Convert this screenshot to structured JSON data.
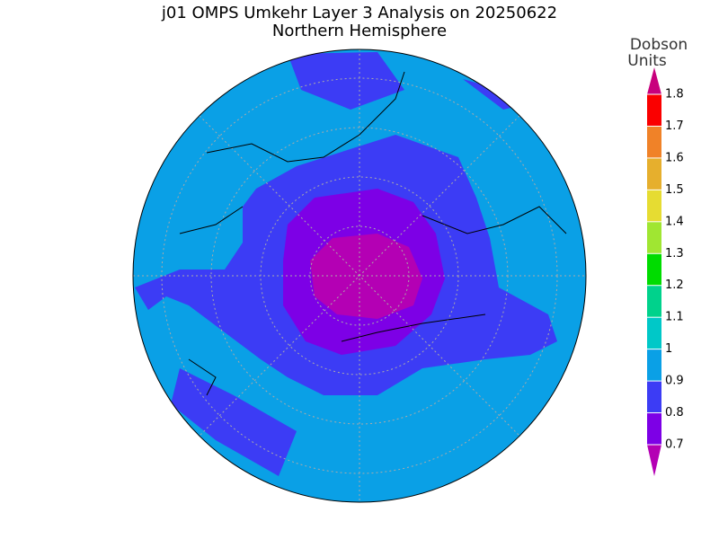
{
  "header": {
    "title": "j01 OMPS Umkehr Layer 3 Analysis on 20250622",
    "subtitle": "Northern Hemisphere"
  },
  "colorbar": {
    "label": [
      "Dobson",
      "Units"
    ],
    "ticks": [
      0.7,
      0.8,
      0.9,
      1,
      1.1,
      1.2,
      1.3,
      1.4,
      1.5,
      1.6,
      1.7,
      1.8
    ],
    "colors": [
      "#b400b4",
      "#7d00e6",
      "#3c3cf5",
      "#0aa0e6",
      "#00c8c8",
      "#00d28c",
      "#00dc00",
      "#a0e632",
      "#e6dc32",
      "#e6af2d",
      "#f08228",
      "#fa0000",
      "#c8007d"
    ]
  }
}
